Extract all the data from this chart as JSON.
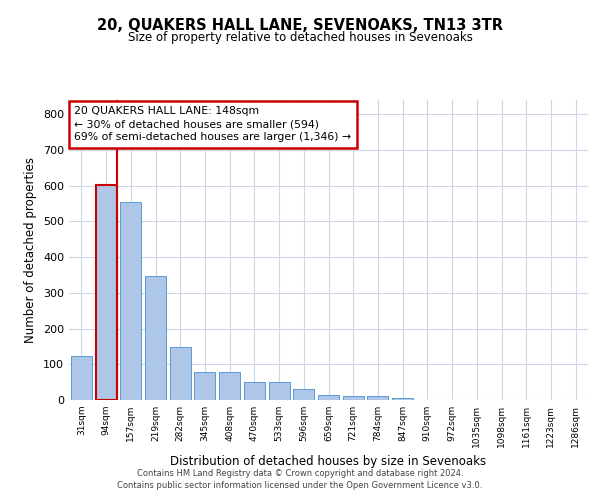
{
  "title": "20, QUAKERS HALL LANE, SEVENOAKS, TN13 3TR",
  "subtitle": "Size of property relative to detached houses in Sevenoaks",
  "xlabel": "Distribution of detached houses by size in Sevenoaks",
  "ylabel": "Number of detached properties",
  "categories": [
    "31sqm",
    "94sqm",
    "157sqm",
    "219sqm",
    "282sqm",
    "345sqm",
    "408sqm",
    "470sqm",
    "533sqm",
    "596sqm",
    "659sqm",
    "721sqm",
    "784sqm",
    "847sqm",
    "910sqm",
    "972sqm",
    "1035sqm",
    "1098sqm",
    "1161sqm",
    "1223sqm",
    "1286sqm"
  ],
  "values": [
    123,
    603,
    555,
    348,
    148,
    78,
    78,
    51,
    51,
    30,
    14,
    12,
    12,
    5,
    0,
    0,
    0,
    0,
    0,
    0,
    0
  ],
  "bar_color": "#aec6e8",
  "bar_edge_color": "#5b9bd5",
  "highlight_bar_index": 1,
  "highlight_bar_edge_color": "#cc0000",
  "annotation_text": "20 QUAKERS HALL LANE: 148sqm\n← 30% of detached houses are smaller (594)\n69% of semi-detached houses are larger (1,346) →",
  "annotation_box_color": "#ffffff",
  "annotation_box_edge_color": "#cc0000",
  "ylim": [
    0,
    840
  ],
  "yticks": [
    0,
    100,
    200,
    300,
    400,
    500,
    600,
    700,
    800
  ],
  "background_color": "#ffffff",
  "grid_color": "#ccd6e8",
  "footer_line1": "Contains HM Land Registry data © Crown copyright and database right 2024.",
  "footer_line2": "Contains public sector information licensed under the Open Government Licence v3.0."
}
